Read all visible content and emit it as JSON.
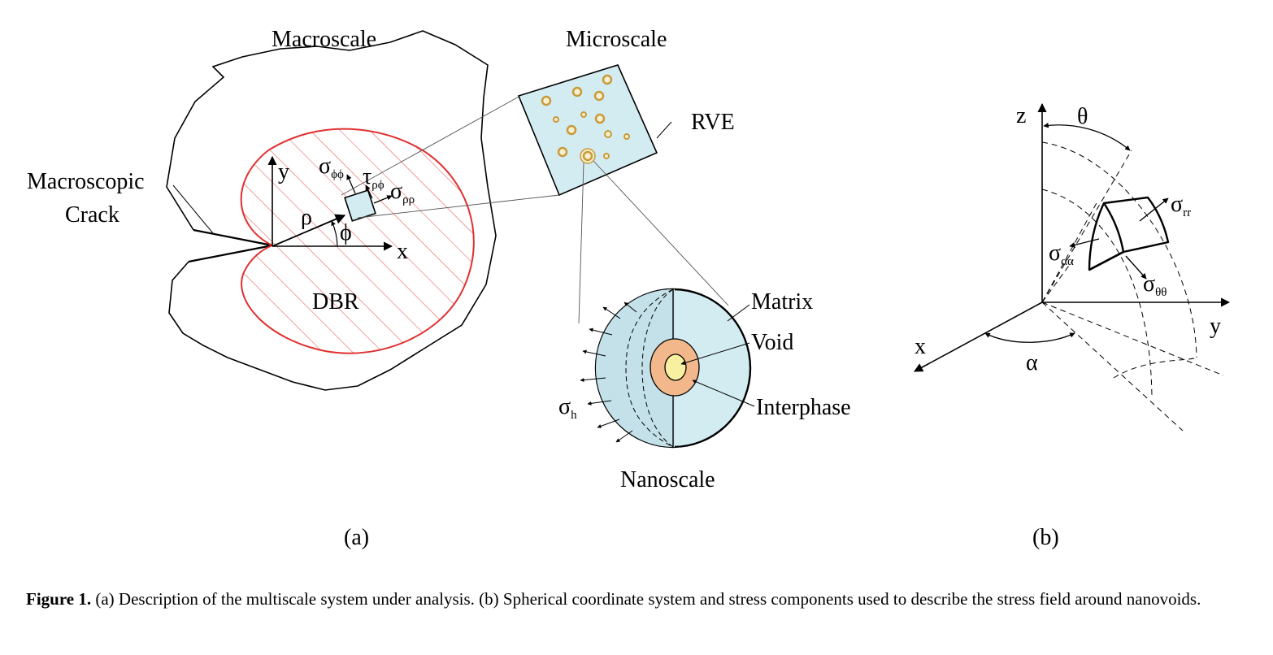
{
  "panel_a": {
    "macroscale": "Macroscale",
    "microscale": "Microscale",
    "rve": "RVE",
    "crack_line1": "Macroscopic",
    "crack_line2": "Crack",
    "axis_y": "y",
    "axis_x": "x",
    "rho": "ρ",
    "phi": "ϕ",
    "sigma": "σ",
    "tau": "τ",
    "sub_phiphi": "ϕϕ",
    "sub_rhophi": "ρϕ",
    "sub_rhorho": "ρρ",
    "dbr": "DBR",
    "matrix": "Matrix",
    "void": "Void",
    "interphase": "Interphase",
    "sub_h": "h",
    "nanoscale": "Nanoscale",
    "tag": "(a)"
  },
  "panel_b": {
    "axis_z": "z",
    "axis_y": "y",
    "axis_x": "x",
    "theta": "θ",
    "alpha": "α",
    "sigma": "σ",
    "sub_rr": "rr",
    "sub_aa": "αα",
    "sub_tt": "θθ",
    "tag": "(b)"
  },
  "caption": {
    "label": "Figure 1.",
    "text": " (a) Description of the multiscale system under analysis. (b) Spherical coordinate system and stress components used to describe the stress field around nanovoids."
  },
  "colors": {
    "dbr_outline": "#e03030",
    "dbr_hatch": "#e8554e",
    "rve_fill": "#d3ecf2",
    "nano_fill": "#d3ecf2",
    "interphase_fill": "#f2b88c",
    "void_fill": "#f6f0a0",
    "particle_ring": "#c99a3a",
    "particle_fill": "#f5f0d0"
  }
}
